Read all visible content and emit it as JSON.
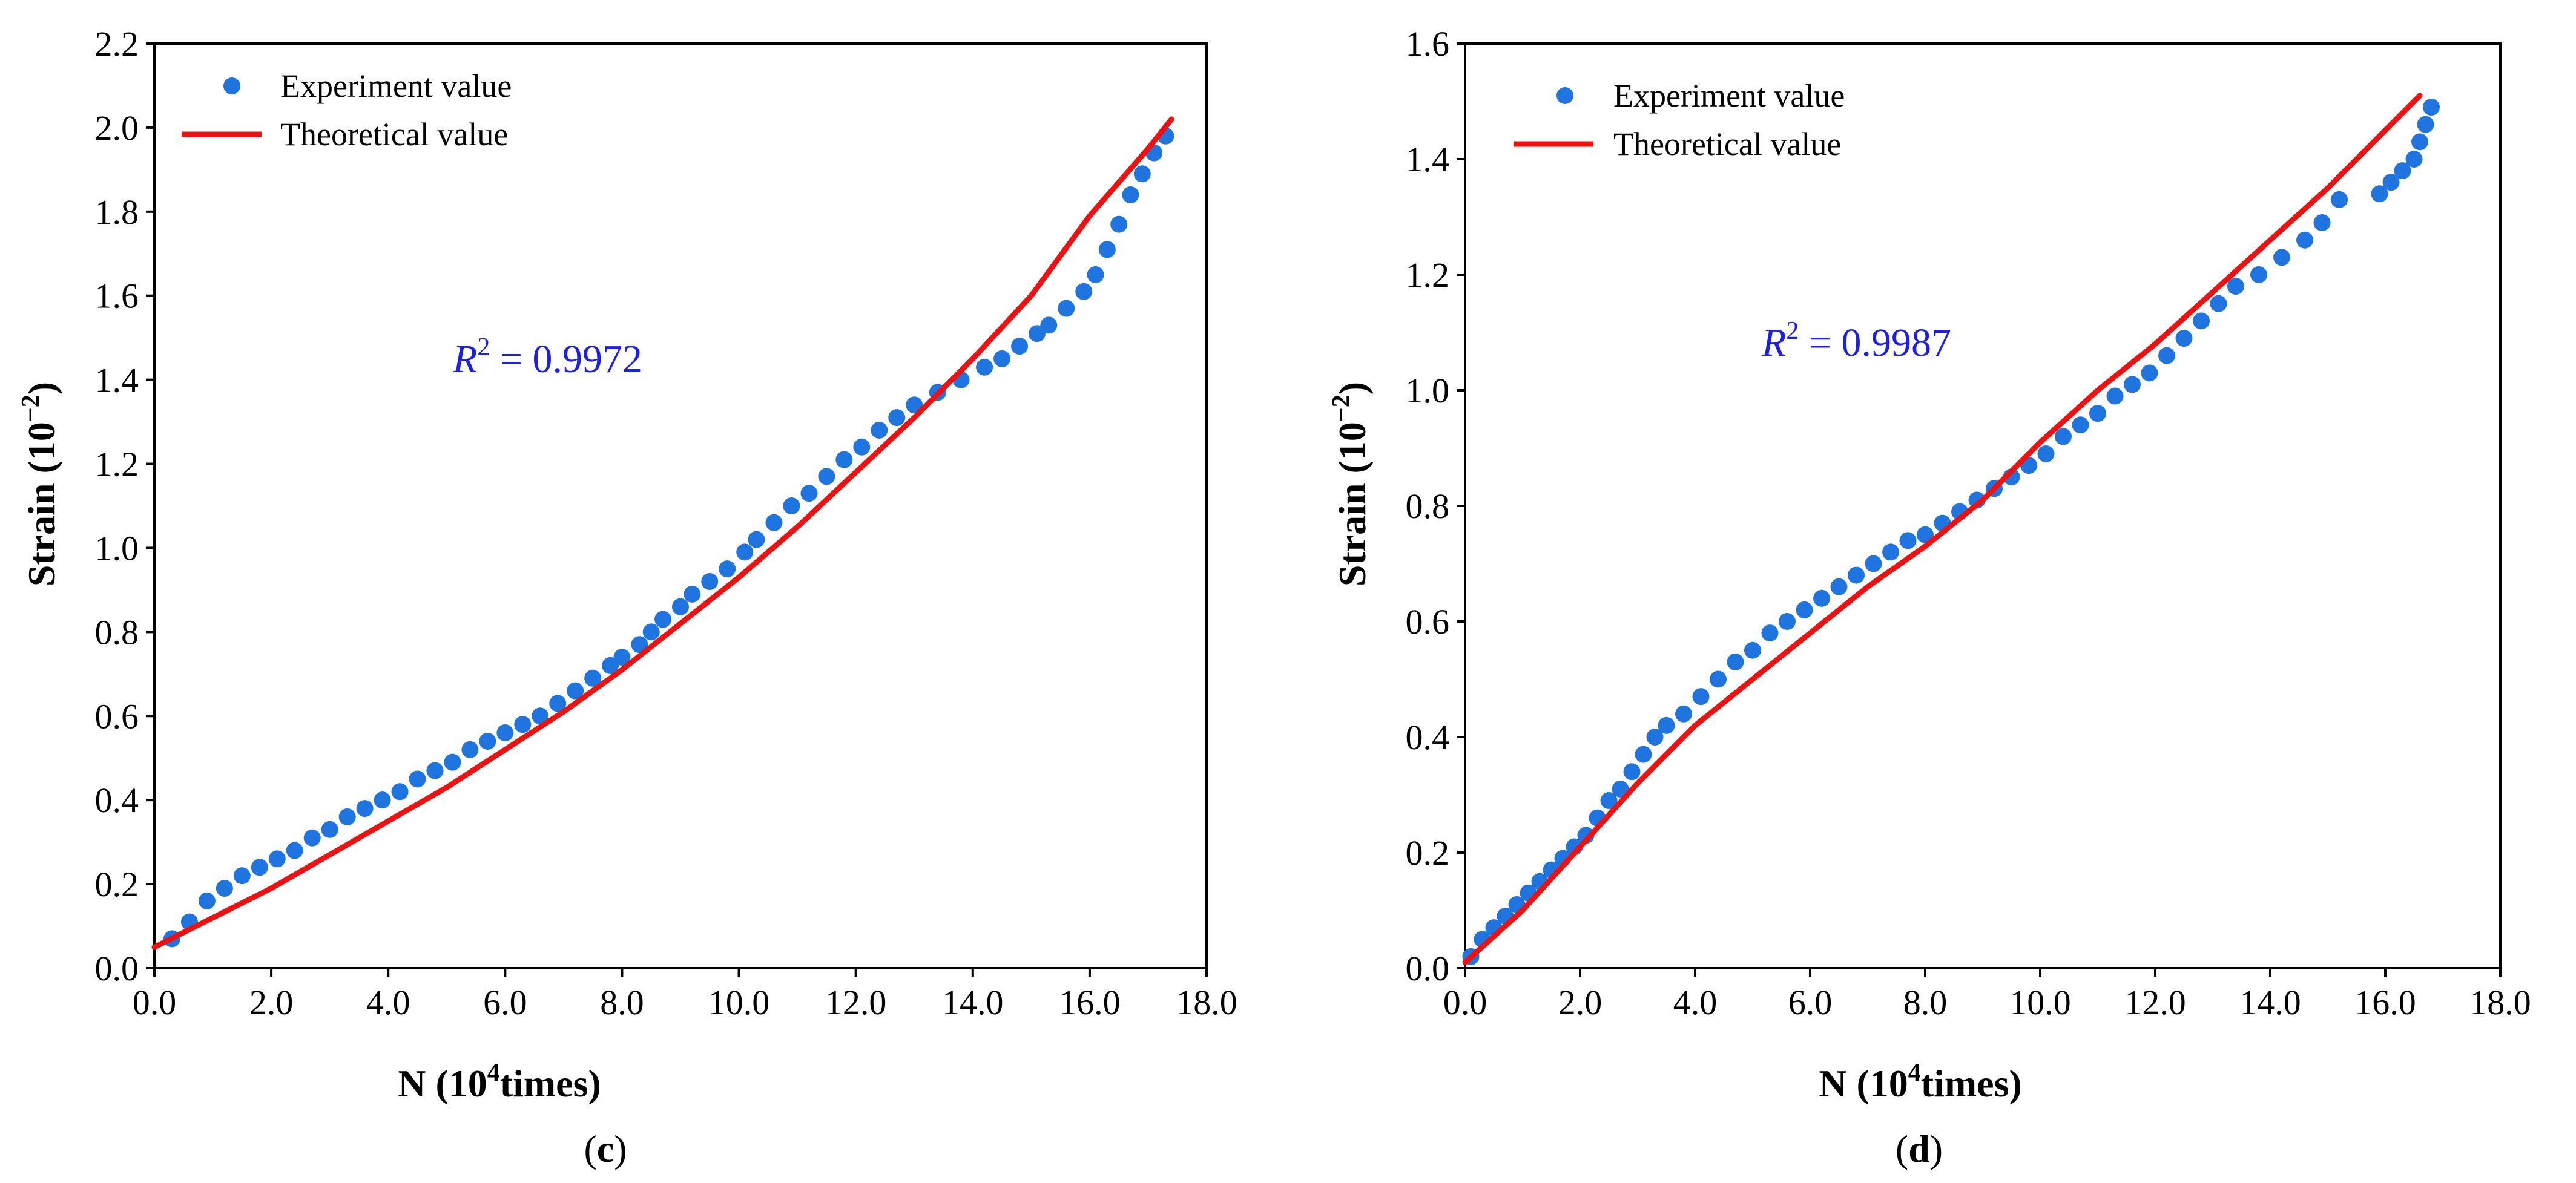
{
  "chart_data": [
    {
      "type": "scatter",
      "panel_label": "c",
      "xlabel": "N (10",
      "xlabel_sup": "4",
      "xlabel_tail": "times)",
      "ylabel": "Strain (10",
      "ylabel_sup": "−2",
      "ylabel_tail": ")",
      "xlim": [
        0,
        18
      ],
      "ylim": [
        0,
        2.2
      ],
      "xticks": [
        "0.0",
        "2.0",
        "4.0",
        "6.0",
        "8.0",
        "10.0",
        "12.0",
        "14.0",
        "16.0",
        "18.0"
      ],
      "yticks": [
        "0.0",
        "0.2",
        "0.4",
        "0.6",
        "0.8",
        "1.0",
        "1.2",
        "1.4",
        "1.6",
        "1.8",
        "2.0",
        "2.2"
      ],
      "legend_position": "top-left",
      "r2_prefix": "R",
      "r2_sup": "2",
      "r2_value": " = 0.9972",
      "series": [
        {
          "name": "Experiment value",
          "kind": "scatter",
          "color": "#1f74e0",
          "x": [
            0.3,
            0.6,
            0.9,
            1.2,
            1.5,
            1.8,
            2.1,
            2.4,
            2.7,
            3.0,
            3.3,
            3.6,
            3.9,
            4.2,
            4.5,
            4.8,
            5.1,
            5.4,
            5.7,
            6.0,
            6.3,
            6.6,
            6.9,
            7.2,
            7.5,
            7.8,
            8.0,
            8.3,
            8.5,
            8.7,
            9.0,
            9.2,
            9.5,
            9.8,
            10.1,
            10.3,
            10.6,
            10.9,
            11.2,
            11.5,
            11.8,
            12.1,
            12.4,
            12.7,
            13.0,
            13.4,
            13.8,
            14.2,
            14.5,
            14.8,
            15.1,
            15.3,
            15.6,
            15.9,
            16.1,
            16.3,
            16.5,
            16.7,
            16.9,
            17.1,
            17.3
          ],
          "y": [
            0.07,
            0.11,
            0.16,
            0.19,
            0.22,
            0.24,
            0.26,
            0.28,
            0.31,
            0.33,
            0.36,
            0.38,
            0.4,
            0.42,
            0.45,
            0.47,
            0.49,
            0.52,
            0.54,
            0.56,
            0.58,
            0.6,
            0.63,
            0.66,
            0.69,
            0.72,
            0.74,
            0.77,
            0.8,
            0.83,
            0.86,
            0.89,
            0.92,
            0.95,
            0.99,
            1.02,
            1.06,
            1.1,
            1.13,
            1.17,
            1.21,
            1.24,
            1.28,
            1.31,
            1.34,
            1.37,
            1.4,
            1.43,
            1.45,
            1.48,
            1.51,
            1.53,
            1.57,
            1.61,
            1.65,
            1.71,
            1.77,
            1.84,
            1.89,
            1.94,
            1.98
          ]
        },
        {
          "name": "Theoretical value",
          "kind": "line",
          "color": "#ee1111",
          "x": [
            0,
            1,
            2,
            3,
            4,
            5,
            6,
            7,
            8,
            9,
            10,
            11,
            12,
            13,
            14,
            15,
            16,
            16.5,
            17,
            17.4
          ],
          "y": [
            0.05,
            0.12,
            0.19,
            0.27,
            0.35,
            0.43,
            0.52,
            0.61,
            0.71,
            0.82,
            0.93,
            1.05,
            1.18,
            1.31,
            1.45,
            1.6,
            1.79,
            1.87,
            1.95,
            2.02
          ]
        }
      ]
    },
    {
      "type": "scatter",
      "panel_label": "d",
      "xlabel": "N (10",
      "xlabel_sup": "4",
      "xlabel_tail": "times)",
      "ylabel": "Strain (10",
      "ylabel_sup": "−2",
      "ylabel_tail": ")",
      "xlim": [
        0,
        18
      ],
      "ylim": [
        0,
        1.6
      ],
      "xticks": [
        "0.0",
        "2.0",
        "4.0",
        "6.0",
        "8.0",
        "10.0",
        "12.0",
        "14.0",
        "16.0",
        "18.0"
      ],
      "yticks": [
        "0.0",
        "0.2",
        "0.4",
        "0.6",
        "0.8",
        "1.0",
        "1.2",
        "1.4",
        "1.6"
      ],
      "legend_position": "top-left",
      "r2_prefix": "R",
      "r2_sup": "2",
      "r2_value": " = 0.9987",
      "series": [
        {
          "name": "Experiment value",
          "kind": "scatter",
          "color": "#1f74e0",
          "x": [
            0.1,
            0.3,
            0.5,
            0.7,
            0.9,
            1.1,
            1.3,
            1.5,
            1.7,
            1.9,
            2.1,
            2.3,
            2.5,
            2.7,
            2.9,
            3.1,
            3.3,
            3.5,
            3.8,
            4.1,
            4.4,
            4.7,
            5.0,
            5.3,
            5.6,
            5.9,
            6.2,
            6.5,
            6.8,
            7.1,
            7.4,
            7.7,
            8.0,
            8.3,
            8.6,
            8.9,
            9.2,
            9.5,
            9.8,
            10.1,
            10.4,
            10.7,
            11.0,
            11.3,
            11.6,
            11.9,
            12.2,
            12.5,
            12.8,
            13.1,
            13.4,
            13.8,
            14.2,
            14.6,
            14.9,
            15.2,
            15.9,
            16.1,
            16.3,
            16.5,
            16.6,
            16.7,
            16.8
          ],
          "y": [
            0.02,
            0.05,
            0.07,
            0.09,
            0.11,
            0.13,
            0.15,
            0.17,
            0.19,
            0.21,
            0.23,
            0.26,
            0.29,
            0.31,
            0.34,
            0.37,
            0.4,
            0.42,
            0.44,
            0.47,
            0.5,
            0.53,
            0.55,
            0.58,
            0.6,
            0.62,
            0.64,
            0.66,
            0.68,
            0.7,
            0.72,
            0.74,
            0.75,
            0.77,
            0.79,
            0.81,
            0.83,
            0.85,
            0.87,
            0.89,
            0.92,
            0.94,
            0.96,
            0.99,
            1.01,
            1.03,
            1.06,
            1.09,
            1.12,
            1.15,
            1.18,
            1.2,
            1.23,
            1.26,
            1.29,
            1.33,
            1.34,
            1.36,
            1.38,
            1.4,
            1.43,
            1.46,
            1.49
          ]
        },
        {
          "name": "Theoretical value",
          "kind": "line",
          "color": "#ee1111",
          "x": [
            0,
            1,
            2,
            3,
            4,
            5,
            6,
            7,
            8,
            9,
            10,
            11,
            12,
            13,
            14,
            15,
            16,
            16.6
          ],
          "y": [
            0.01,
            0.1,
            0.21,
            0.32,
            0.42,
            0.5,
            0.58,
            0.66,
            0.73,
            0.81,
            0.91,
            1.0,
            1.08,
            1.17,
            1.26,
            1.35,
            1.45,
            1.51
          ]
        }
      ]
    }
  ]
}
